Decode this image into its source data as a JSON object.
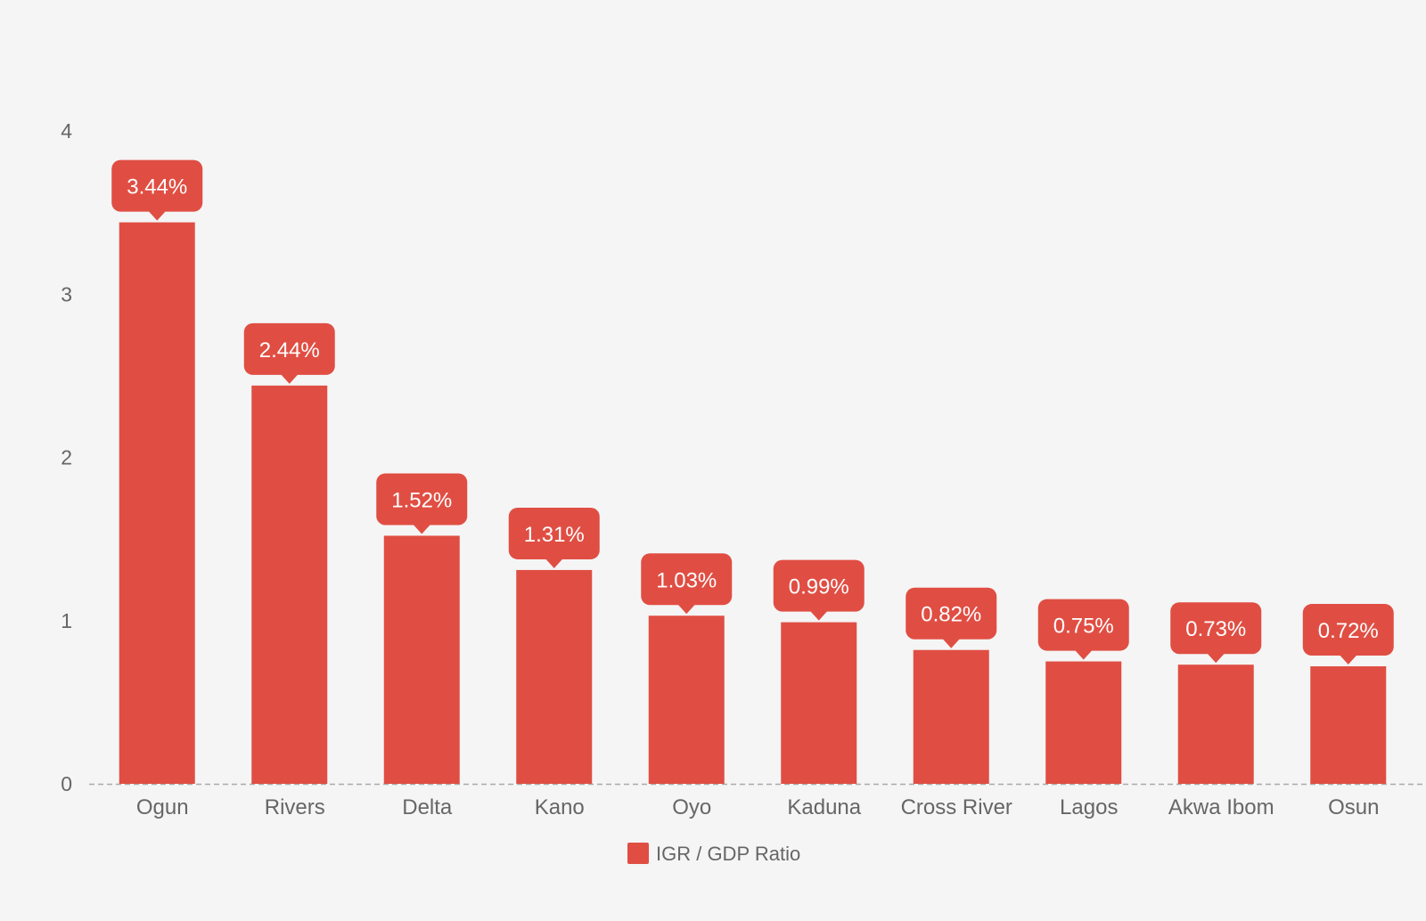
{
  "chart_data": {
    "type": "bar",
    "categories": [
      "Ogun",
      "Rivers",
      "Delta",
      "Kano",
      "Oyo",
      "Kaduna",
      "Cross River",
      "Lagos",
      "Akwa Ibom",
      "Osun"
    ],
    "series": [
      {
        "name": "IGR / GDP Ratio",
        "values": [
          3.44,
          2.44,
          1.52,
          1.31,
          1.03,
          0.99,
          0.82,
          0.75,
          0.73,
          0.72
        ],
        "data_labels": [
          "3.44%",
          "2.44%",
          "1.52%",
          "1.31%",
          "1.03%",
          "0.99%",
          "0.82%",
          "0.75%",
          "0.73%",
          "0.72%"
        ],
        "color": "#e04e43"
      }
    ],
    "y_ticks": [
      "0",
      "1",
      "2",
      "3",
      "4"
    ],
    "ylim": [
      0,
      4
    ],
    "grid": false,
    "baseline_style": "dashed",
    "legend_position": "bottom-center",
    "label_text_color": "#666666",
    "background": "#f5f5f5"
  }
}
